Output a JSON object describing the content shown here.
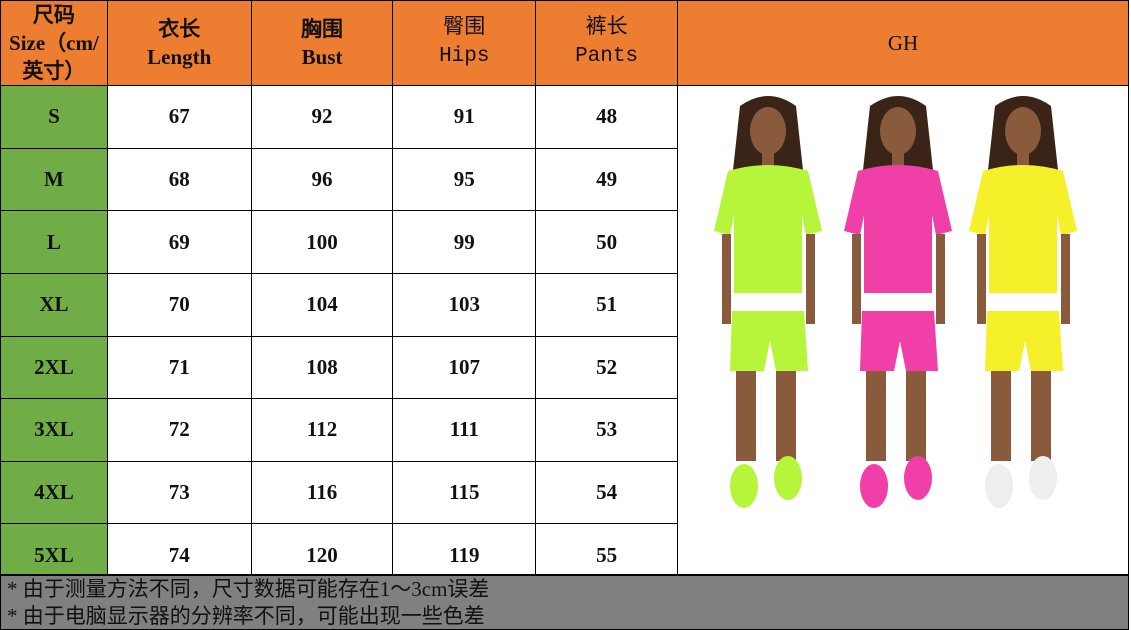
{
  "header": {
    "size_cn": "尺码",
    "size_en": "Size（cm/英寸）",
    "columns": [
      {
        "cn": "衣长",
        "en": "Length"
      },
      {
        "cn": "胸围",
        "en": "Bust"
      },
      {
        "cn": "臀围",
        "en": "Hips"
      },
      {
        "cn": "裤长",
        "en": "Pants"
      }
    ],
    "gh": "GH"
  },
  "rows": [
    {
      "size": "S",
      "values": [
        "67",
        "92",
        "91",
        "48"
      ]
    },
    {
      "size": "M",
      "values": [
        "68",
        "96",
        "95",
        "49"
      ]
    },
    {
      "size": "L",
      "values": [
        "69",
        "100",
        "99",
        "50"
      ]
    },
    {
      "size": "XL",
      "values": [
        "70",
        "104",
        "103",
        "51"
      ]
    },
    {
      "size": "2XL",
      "values": [
        "71",
        "108",
        "107",
        "52"
      ]
    },
    {
      "size": "3XL",
      "values": [
        "72",
        "112",
        "111",
        "53"
      ]
    },
    {
      "size": "4XL",
      "values": [
        "73",
        "116",
        "115",
        "54"
      ]
    },
    {
      "size": "5XL",
      "values": [
        "74",
        "120",
        "119",
        "55"
      ]
    }
  ],
  "footer": [
    "* 由于测量方法不同，尺寸数据可能存在1～3cm误差",
    "* 由于电脑显示器的分辨率不同，可能出现一些色差"
  ],
  "colors": {
    "header": "#ED7D31",
    "size_column": "#70AD47",
    "footer": "#808080",
    "outfits": [
      "#B6F53A",
      "#F03FA6",
      "#F5F02A"
    ]
  }
}
